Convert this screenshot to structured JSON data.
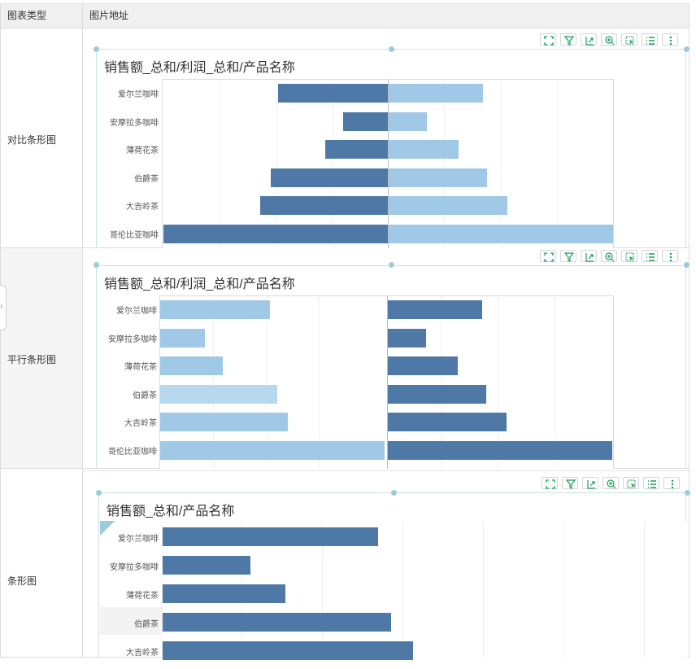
{
  "table": {
    "headers": [
      "图表类型",
      "图片地址"
    ],
    "rows": [
      {
        "type": "对比条形图"
      },
      {
        "type": "平行条形图"
      },
      {
        "type": "条形图"
      }
    ]
  },
  "colors": {
    "dark": "#4e79a7",
    "light": "#9fc9e7",
    "highlight": "#b8d8ed",
    "handle": "#9ccbdc",
    "icon": "#1a9e5a"
  },
  "toolbar_icons": [
    "fullscreen-icon",
    "filter-icon",
    "export-icon",
    "zoom-in-icon",
    "select-icon",
    "list-icon",
    "more-icon"
  ],
  "chart_data": [
    {
      "type": "bar",
      "subtype": "contrast",
      "title": "销售额_总和/利润_总和/产品名称",
      "categories": [
        "爱尔兰咖啡",
        "安摩拉多咖啡",
        "薄荷花茶",
        "伯爵茶",
        "大吉岭茶",
        "哥伦比亚咖啡"
      ],
      "series": [
        {
          "values": [
            0.49,
            0.2,
            0.28,
            0.52,
            0.57,
            1.0
          ]
        },
        {
          "values": [
            0.42,
            0.17,
            0.31,
            0.44,
            0.53,
            1.0
          ]
        }
      ]
    },
    {
      "type": "bar",
      "subtype": "parallel",
      "title": "销售额_总和/利润_总和/产品名称",
      "categories": [
        "爱尔兰咖啡",
        "安摩拉多咖啡",
        "薄荷花茶",
        "伯爵茶",
        "大吉岭茶",
        "哥伦比亚咖啡"
      ],
      "series": [
        {
          "values": [
            0.49,
            0.2,
            0.28,
            0.52,
            0.57,
            1.0
          ]
        },
        {
          "values": [
            0.42,
            0.17,
            0.31,
            0.44,
            0.53,
            1.0
          ]
        }
      ]
    },
    {
      "type": "bar",
      "subtype": "single",
      "title": "销售额_总和/产品名称",
      "categories": [
        "爱尔兰咖啡",
        "安摩拉多咖啡",
        "薄荷花茶",
        "伯爵茶",
        "大吉岭茶"
      ],
      "series": [
        {
          "values": [
            0.49,
            0.2,
            0.28,
            0.52,
            0.57
          ]
        }
      ]
    }
  ]
}
